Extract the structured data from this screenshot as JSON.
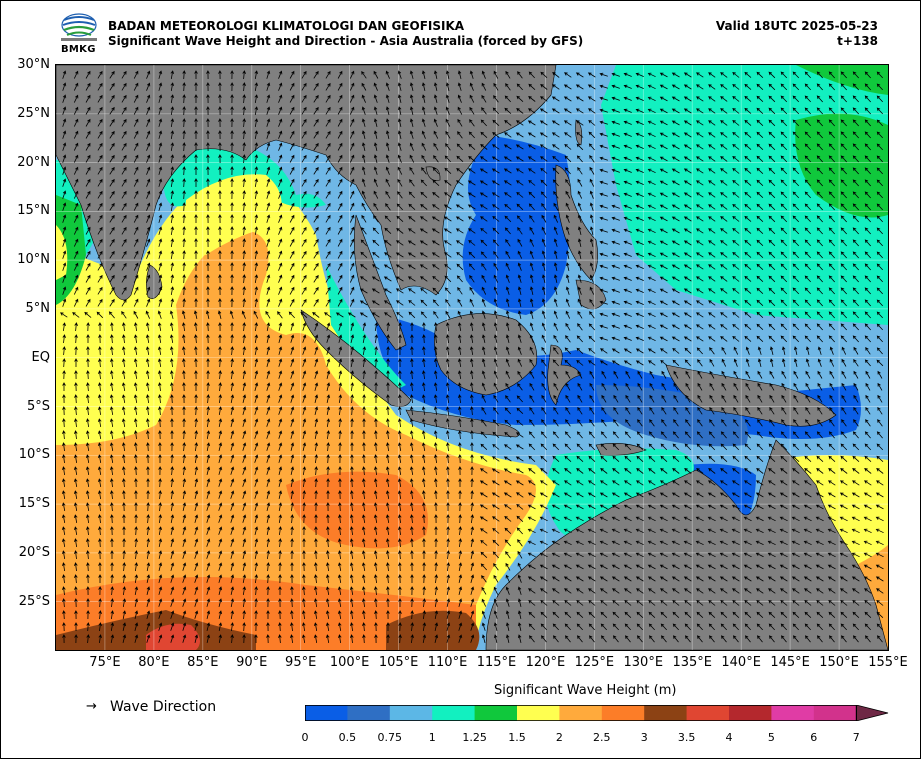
{
  "header": {
    "agency": "BADAN METEOROLOGI KLIMATOLOGI DAN GEOFISIKA",
    "product": "Significant Wave Height and Direction - Asia Australia (forced by GFS)",
    "valid": "Valid 18UTC 2025-05-23",
    "lead_time": "t+138",
    "logo_text": "BMKG"
  },
  "map": {
    "lat_labels": [
      "30°N",
      "25°N",
      "20°N",
      "15°N",
      "10°N",
      "5°N",
      "EQ",
      "5°S",
      "10°S",
      "15°S",
      "20°S",
      "25°S"
    ],
    "lon_labels": [
      "75°E",
      "80°E",
      "85°E",
      "90°E",
      "95°E",
      "100°E",
      "105°E",
      "110°E",
      "115°E",
      "120°E",
      "125°E",
      "130°E",
      "135°E",
      "140°E",
      "145°E",
      "150°E",
      "155°E"
    ],
    "extent": {
      "lon_min": 70,
      "lon_max": 155,
      "lat_min": -29.5,
      "lat_max": 30
    },
    "land_color": "#808080",
    "grid": true
  },
  "legend": {
    "arrow_symbol": "→",
    "arrow_label": "Wave Direction"
  },
  "colorbar": {
    "title": "Significant Wave Height (m)",
    "ticks": [
      "0",
      "0.5",
      "0.75",
      "1",
      "1.25",
      "1.5",
      "2",
      "2.5",
      "3",
      "3.5",
      "4",
      "5",
      "6",
      "7"
    ],
    "colors": [
      "#0a5ee6",
      "#2f6fc4",
      "#5cb7e6",
      "#12f0c0",
      "#10c83c",
      "#ffff50",
      "#ffaa3c",
      "#fc7d28",
      "#8c4214",
      "#e04632",
      "#b4282d",
      "#e03ca5",
      "#d2328c"
    ],
    "extend_color": "#6e2845"
  }
}
